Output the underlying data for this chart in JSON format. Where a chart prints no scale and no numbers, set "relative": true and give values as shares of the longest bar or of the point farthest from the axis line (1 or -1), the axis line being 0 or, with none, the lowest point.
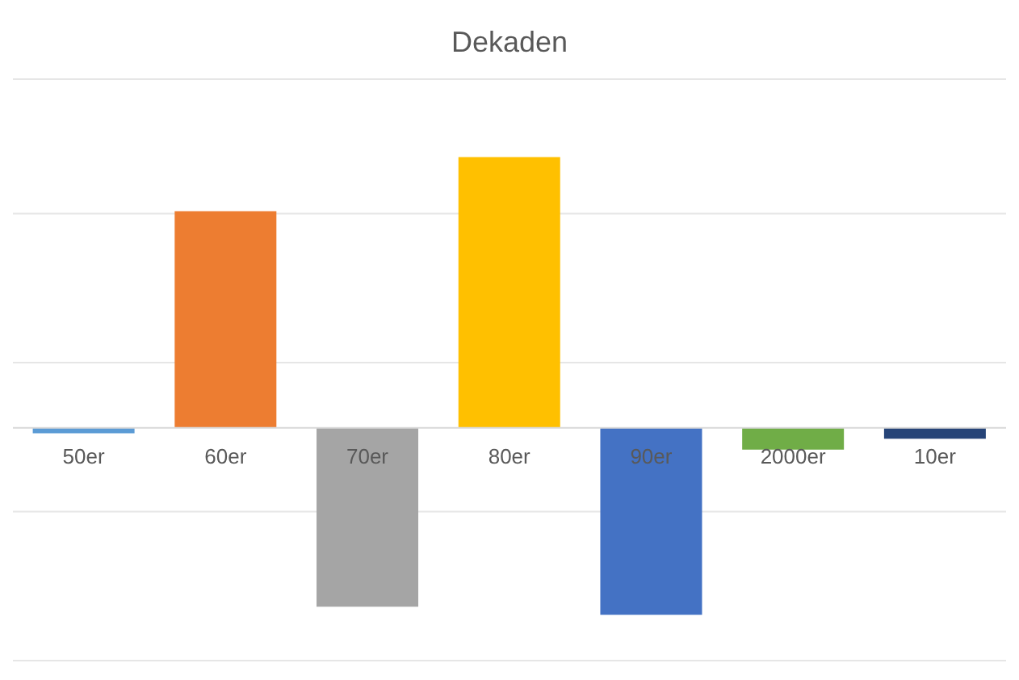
{
  "chart_data": {
    "type": "bar",
    "title": "Dekaden",
    "relative": true,
    "grid": "y",
    "categories": [
      "50er",
      "60er",
      "70er",
      "80er",
      "90er",
      "2000er",
      "10er"
    ],
    "values": [
      -0.02,
      0.8,
      -0.66,
      1,
      -0.69,
      -0.08,
      -0.04
    ],
    "colors": [
      "#5b9bd5",
      "#ed7d31",
      "#a5a5a5",
      "#ffc000",
      "#4472c4",
      "#70ad47",
      "#264478"
    ]
  }
}
